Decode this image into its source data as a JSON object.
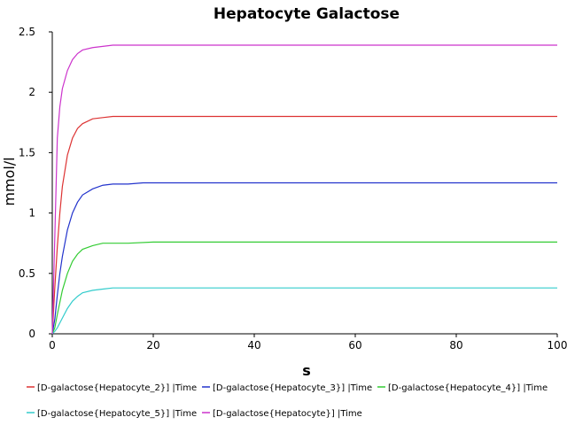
{
  "chart_data": {
    "type": "line",
    "title": "Hepatocyte Galactose",
    "xlabel": "s",
    "ylabel": "mmol/l",
    "xlim": [
      0,
      100
    ],
    "ylim": [
      0,
      2.5
    ],
    "x_ticks": [
      "0",
      "20",
      "40",
      "60",
      "80",
      "100"
    ],
    "y_ticks": [
      "0",
      "0.5",
      "1",
      "1.5",
      "2",
      "2.5"
    ],
    "grid": false,
    "legend_position": "bottom",
    "series": [
      {
        "name": "[D-galactose{Hepatocyte_2}] |Time",
        "color": "#dd3333",
        "x": [
          0,
          0.5,
          1,
          1.5,
          2,
          3,
          4,
          5,
          6,
          8,
          10,
          12,
          15,
          20,
          30,
          50,
          75,
          100
        ],
        "y": [
          0,
          0.38,
          0.72,
          1.0,
          1.22,
          1.48,
          1.62,
          1.7,
          1.74,
          1.78,
          1.79,
          1.8,
          1.8,
          1.8,
          1.8,
          1.8,
          1.8,
          1.8
        ]
      },
      {
        "name": "[D-galactose{Hepatocyte_3}] |Time",
        "color": "#2233cc",
        "x": [
          0,
          0.5,
          1,
          1.5,
          2,
          3,
          4,
          5,
          6,
          8,
          10,
          12,
          15,
          18,
          20,
          30,
          50,
          75,
          100
        ],
        "y": [
          0,
          0.12,
          0.32,
          0.5,
          0.64,
          0.86,
          1.0,
          1.09,
          1.15,
          1.2,
          1.23,
          1.24,
          1.24,
          1.25,
          1.25,
          1.25,
          1.25,
          1.25,
          1.25
        ]
      },
      {
        "name": "[D-galactose{Hepatocyte_4}] |Time",
        "color": "#33cc33",
        "x": [
          0,
          0.5,
          1,
          2,
          3,
          4,
          5,
          6,
          8,
          10,
          12,
          15,
          20,
          30,
          50,
          75,
          100
        ],
        "y": [
          0,
          0.05,
          0.16,
          0.36,
          0.5,
          0.6,
          0.66,
          0.7,
          0.73,
          0.75,
          0.75,
          0.75,
          0.76,
          0.76,
          0.76,
          0.76,
          0.76
        ]
      },
      {
        "name": "[D-galactose{Hepatocyte_5}] |Time",
        "color": "#33cccc",
        "x": [
          0,
          0.5,
          1,
          2,
          3,
          4,
          5,
          6,
          8,
          10,
          12,
          15,
          20,
          30,
          50,
          75,
          100
        ],
        "y": [
          0,
          0.02,
          0.05,
          0.13,
          0.21,
          0.27,
          0.31,
          0.34,
          0.36,
          0.37,
          0.38,
          0.38,
          0.38,
          0.38,
          0.38,
          0.38,
          0.38
        ]
      },
      {
        "name": "[D-galactose{Hepatocyte}] |Time",
        "color": "#cc33cc",
        "x": [
          0,
          0.5,
          1,
          1.5,
          2,
          3,
          4,
          5,
          6,
          8,
          10,
          12,
          15,
          20,
          30,
          50,
          75,
          100
        ],
        "y": [
          0,
          0.8,
          1.62,
          1.88,
          2.03,
          2.18,
          2.27,
          2.32,
          2.35,
          2.37,
          2.38,
          2.39,
          2.39,
          2.39,
          2.39,
          2.39,
          2.39,
          2.39
        ]
      }
    ]
  }
}
